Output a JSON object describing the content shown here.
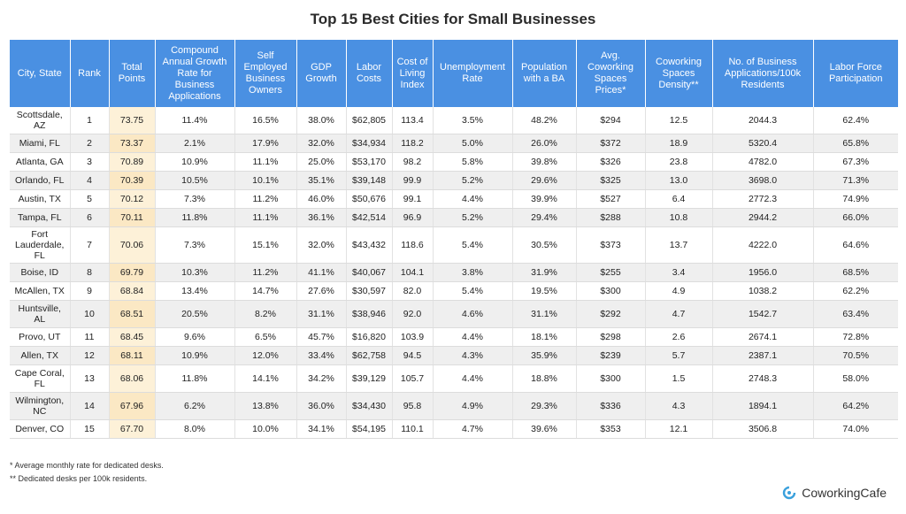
{
  "title": "Top 15 Best Cities for Small Businesses",
  "headers": [
    "City, State",
    "Rank",
    "Total Points",
    "Compound Annual Growth Rate for Business Applications",
    "Self Employed Business Owners",
    "GDP Growth",
    "Labor Costs",
    "Cost of Living Index",
    "Unemployment Rate",
    "Population with a BA",
    "Avg. Coworking Spaces Prices*",
    "Coworking Spaces Density**",
    "No. of Business Applications/100k Residents",
    "Labor Force Participation"
  ],
  "rows": [
    [
      "Scottsdale, AZ",
      "1",
      "73.75",
      "11.4%",
      "16.5%",
      "38.0%",
      "$62,805",
      "113.4",
      "3.5%",
      "48.2%",
      "$294",
      "12.5",
      "2044.3",
      "62.4%"
    ],
    [
      "Miami, FL",
      "2",
      "73.37",
      "2.1%",
      "17.9%",
      "32.0%",
      "$34,934",
      "118.2",
      "5.0%",
      "26.0%",
      "$372",
      "18.9",
      "5320.4",
      "65.8%"
    ],
    [
      "Atlanta, GA",
      "3",
      "70.89",
      "10.9%",
      "11.1%",
      "25.0%",
      "$53,170",
      "98.2",
      "5.8%",
      "39.8%",
      "$326",
      "23.8",
      "4782.0",
      "67.3%"
    ],
    [
      "Orlando, FL",
      "4",
      "70.39",
      "10.5%",
      "10.1%",
      "35.1%",
      "$39,148",
      "99.9",
      "5.2%",
      "29.6%",
      "$325",
      "13.0",
      "3698.0",
      "71.3%"
    ],
    [
      "Austin, TX",
      "5",
      "70.12",
      "7.3%",
      "11.2%",
      "46.0%",
      "$50,676",
      "99.1",
      "4.4%",
      "39.9%",
      "$527",
      "6.4",
      "2772.3",
      "74.9%"
    ],
    [
      "Tampa, FL",
      "6",
      "70.11",
      "11.8%",
      "11.1%",
      "36.1%",
      "$42,514",
      "96.9",
      "5.2%",
      "29.4%",
      "$288",
      "10.8",
      "2944.2",
      "66.0%"
    ],
    [
      "Fort Lauderdale, FL",
      "7",
      "70.06",
      "7.3%",
      "15.1%",
      "32.0%",
      "$43,432",
      "118.6",
      "5.4%",
      "30.5%",
      "$373",
      "13.7",
      "4222.0",
      "64.6%"
    ],
    [
      "Boise, ID",
      "8",
      "69.79",
      "10.3%",
      "11.2%",
      "41.1%",
      "$40,067",
      "104.1",
      "3.8%",
      "31.9%",
      "$255",
      "3.4",
      "1956.0",
      "68.5%"
    ],
    [
      "McAllen, TX",
      "9",
      "68.84",
      "13.4%",
      "14.7%",
      "27.6%",
      "$30,597",
      "82.0",
      "5.4%",
      "19.5%",
      "$300",
      "4.9",
      "1038.2",
      "62.2%"
    ],
    [
      "Huntsville, AL",
      "10",
      "68.51",
      "20.5%",
      "8.2%",
      "31.1%",
      "$38,946",
      "92.0",
      "4.6%",
      "31.1%",
      "$292",
      "4.7",
      "1542.7",
      "63.4%"
    ],
    [
      "Provo, UT",
      "11",
      "68.45",
      "9.6%",
      "6.5%",
      "45.7%",
      "$16,820",
      "103.9",
      "4.4%",
      "18.1%",
      "$298",
      "2.6",
      "2674.1",
      "72.8%"
    ],
    [
      "Allen, TX",
      "12",
      "68.11",
      "10.9%",
      "12.0%",
      "33.4%",
      "$62,758",
      "94.5",
      "4.3%",
      "35.9%",
      "$239",
      "5.7",
      "2387.1",
      "70.5%"
    ],
    [
      "Cape Coral, FL",
      "13",
      "68.06",
      "11.8%",
      "14.1%",
      "34.2%",
      "$39,129",
      "105.7",
      "4.4%",
      "18.8%",
      "$300",
      "1.5",
      "2748.3",
      "58.0%"
    ],
    [
      "Wilmington, NC",
      "14",
      "67.96",
      "6.2%",
      "13.8%",
      "36.0%",
      "$34,430",
      "95.8",
      "4.9%",
      "29.3%",
      "$336",
      "4.3",
      "1894.1",
      "64.2%"
    ],
    [
      "Denver, CO",
      "15",
      "67.70",
      "8.0%",
      "10.0%",
      "34.1%",
      "$54,195",
      "110.1",
      "4.7%",
      "39.6%",
      "$353",
      "12.1",
      "3506.8",
      "74.0%"
    ]
  ],
  "notes": [
    "* Average monthly rate for dedicated desks.",
    "** Dedicated desks per 100k residents."
  ],
  "brand": {
    "name": "CoworkingCafe",
    "icon": "coworkingcafe-logo-icon"
  },
  "colors": {
    "header_bg": "#4a90e2",
    "points_highlight": "#fdf1d8",
    "brand_accent": "#3aa0dc"
  }
}
